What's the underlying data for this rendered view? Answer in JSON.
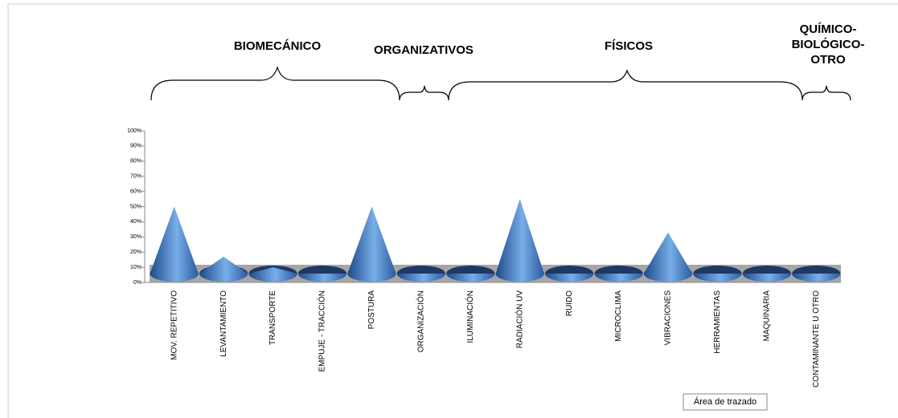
{
  "chart_data": {
    "type": "cone",
    "group_labels": [
      "BIOMECÁNICO",
      "ORGANIZATIVOS",
      "FÍSICOS",
      [
        "QUÍMICO-",
        "BIOLÓGICO-",
        "OTRO"
      ]
    ],
    "categories": [
      "MOV. REPETITIVO",
      "LEVANTAMIENTO",
      "TRANSPORTE",
      "EMPUJE - TRACCIÓN",
      "POSTURA",
      "ORGANIZACIÓN",
      "ILUMINACIÓN",
      "RADIACIÓN UV",
      "RUIDO",
      "MICROCLIMA",
      "VIBRACIONES",
      "HERRAMIENTAS",
      "MAQUINARIA",
      "CONTAMINANTE U OTRO"
    ],
    "values": [
      50,
      17,
      10,
      0,
      50,
      0,
      0,
      55,
      0,
      0,
      33,
      0,
      0,
      0
    ],
    "color": "#3a6fbf",
    "ylim": [
      0,
      100
    ],
    "yticks": [
      {
        "value": 0,
        "label": "0%"
      },
      {
        "value": 10,
        "label": "10%"
      },
      {
        "value": 20,
        "label": "20%"
      },
      {
        "value": 30,
        "label": "30%"
      },
      {
        "value": 40,
        "label": "40%"
      },
      {
        "value": 50,
        "label": "50%"
      },
      {
        "value": 60,
        "label": "60%"
      },
      {
        "value": 70,
        "label": "70%"
      },
      {
        "value": 80,
        "label": "80%"
      },
      {
        "value": 90,
        "label": "90%"
      },
      {
        "value": 100,
        "label": "100%"
      }
    ],
    "tooltip": "Área de trazado"
  }
}
